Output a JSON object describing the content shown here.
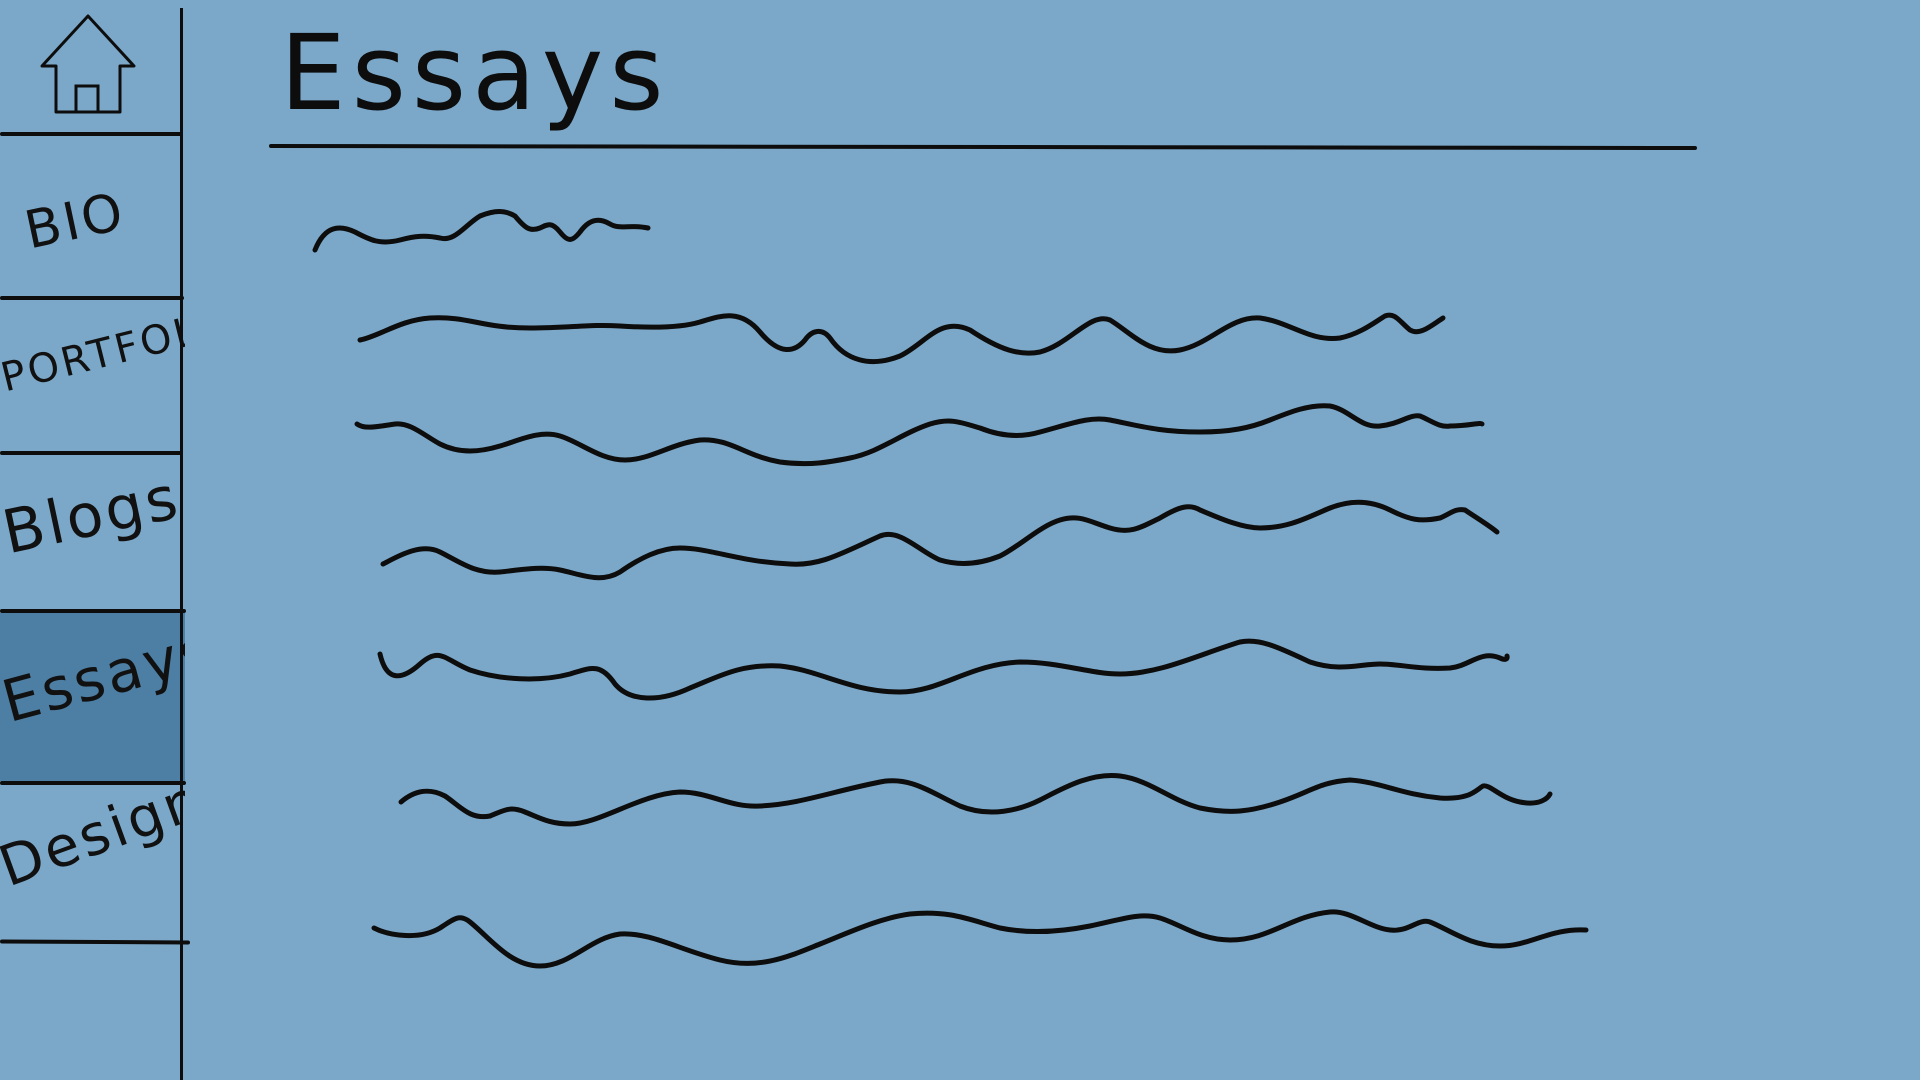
{
  "page": {
    "title": "Essays",
    "background_color": "#7ba8c9"
  },
  "sidebar": {
    "home_icon": "home-icon",
    "active_color": "#4d7ea3",
    "items": [
      {
        "label": "BIO",
        "active": false
      },
      {
        "label": "PORTFOLIO",
        "active": false
      },
      {
        "label": "Blogs",
        "active": false
      },
      {
        "label": "Essays",
        "active": true
      },
      {
        "label": "Design",
        "active": false
      }
    ]
  },
  "content": {
    "placeholder_line_count": 7,
    "stroke_color": "#0d0d0d"
  }
}
